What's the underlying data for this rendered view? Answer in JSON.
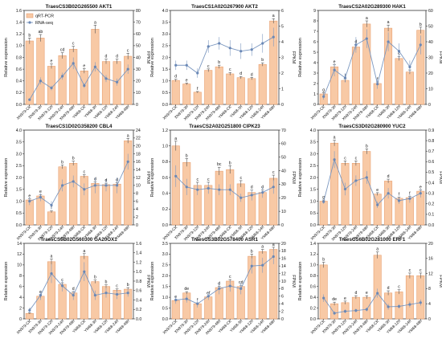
{
  "figure": {
    "legend": {
      "bar_label": "qRT-PCR",
      "line_label": "RNA-seq"
    },
    "colors": {
      "bar_fill": "#f8c9a5",
      "bar_stroke": "#e8a070",
      "line": "#7c98c0",
      "marker": "#6a88b6",
      "axis": "#333333",
      "text": "#111111"
    }
  },
  "chart_data": [
    {
      "type": "bar",
      "title": "TraesCS3B02G265500  AKT1",
      "ylabel": "Relative expression",
      "y2label": "FPKM",
      "ylim": [
        0,
        1.6
      ],
      "y2lim": [
        0,
        80
      ],
      "yticks": [
        "0.0",
        "0.2",
        "0.4",
        "0.6",
        "0.8",
        "1.0",
        "1.2",
        "1.4",
        "1.6"
      ],
      "y2ticks": [
        "0",
        "10",
        "20",
        "30",
        "40",
        "50",
        "60",
        "70",
        "80"
      ],
      "categories": [
        "XN979-CK",
        "XN979-3h",
        "XN979-12h",
        "XN979-24h",
        "XN979-48h",
        "YM68-CK",
        "YM68-3h",
        "YM68-12h",
        "YM68-24h",
        "YM68-48h"
      ],
      "series": [
        {
          "name": "qRT-PCR",
          "values": [
            1.08,
            1.13,
            0.65,
            0.83,
            0.94,
            0.57,
            1.28,
            0.73,
            0.73,
            0.82
          ],
          "errors": [
            0.05,
            0.06,
            0.04,
            0.05,
            0.05,
            0.04,
            0.07,
            0.04,
            0.04,
            0.05
          ],
          "letters": [
            "b",
            "ab",
            "e",
            "cd",
            "c",
            "e",
            "a",
            "d",
            "d",
            "c"
          ]
        },
        {
          "name": "RNA-seq",
          "values": [
            4,
            20,
            14,
            24,
            35,
            16,
            32,
            22,
            19,
            30
          ],
          "errors": [
            1,
            3,
            2,
            3,
            5,
            2,
            4,
            3,
            3,
            4
          ],
          "axis": "right"
        }
      ]
    },
    {
      "type": "bar",
      "title": "TraesCS1A02G267900  AKT2",
      "ylabel": "Relative expression",
      "y2label": "FPKM",
      "ylim": [
        0,
        4.0
      ],
      "y2lim": [
        0,
        6
      ],
      "yticks": [
        "0.0",
        "0.5",
        "1.0",
        "1.5",
        "2.0",
        "2.5",
        "3.0",
        "3.5",
        "4.0"
      ],
      "y2ticks": [
        "0",
        "1",
        "2",
        "3",
        "4",
        "5",
        "6"
      ],
      "categories": [
        "XN979-CK",
        "XN979-3h",
        "XN979-12h",
        "XN979-24h",
        "XN979-48h",
        "YM68-CK",
        "YM68-3h",
        "YM68-12h",
        "YM68-24h",
        "YM68-48h"
      ],
      "series": [
        {
          "name": "qRT-PCR",
          "values": [
            1.02,
            0.87,
            0.52,
            1.45,
            1.6,
            1.3,
            1.14,
            1.1,
            1.7,
            3.55
          ],
          "errors": [
            0.05,
            0.04,
            0.03,
            0.06,
            0.07,
            0.06,
            0.05,
            0.05,
            0.07,
            0.1
          ],
          "letters": [
            "d",
            "e",
            "f",
            "c",
            "b",
            "c",
            "d",
            "d",
            "b",
            "a"
          ]
        },
        {
          "name": "RNA-seq",
          "values": [
            2.5,
            2.5,
            2.0,
            3.7,
            3.9,
            3.6,
            3.4,
            3.5,
            3.9,
            4.3
          ],
          "errors": [
            0.3,
            0.3,
            0.3,
            0.4,
            0.4,
            0.5,
            0.5,
            0.4,
            0.6,
            0.6
          ],
          "axis": "right"
        }
      ]
    },
    {
      "type": "bar",
      "title": "TraesCS2A02G289300  HAK1",
      "ylabel": "Relative expression",
      "y2label": "FPKM",
      "ylim": [
        0,
        9
      ],
      "y2lim": [
        0,
        60
      ],
      "yticks": [
        "0",
        "1",
        "2",
        "3",
        "4",
        "5",
        "6",
        "7",
        "8",
        "9"
      ],
      "y2ticks": [
        "0",
        "10",
        "20",
        "30",
        "40",
        "50",
        "60"
      ],
      "categories": [
        "XN979-CK",
        "XN979-3h",
        "XN979-12h",
        "XN979-24h",
        "XN979-48h",
        "YM68-CK",
        "YM68-3h",
        "YM68-12h",
        "YM68-24h",
        "YM68-48h"
      ],
      "series": [
        {
          "name": "qRT-PCR",
          "values": [
            1.0,
            3.6,
            2.3,
            5.5,
            7.7,
            2.0,
            7.3,
            4.4,
            3.1,
            7.1
          ],
          "errors": [
            0.1,
            0.2,
            0.15,
            0.25,
            0.3,
            0.15,
            0.3,
            0.2,
            0.2,
            0.3
          ],
          "letters": [
            "g",
            "e",
            "f",
            "d",
            "a",
            "f",
            "a",
            "c",
            "e",
            "b"
          ]
        },
        {
          "name": "RNA-seq",
          "values": [
            5,
            22,
            17,
            38,
            42,
            13,
            40,
            34,
            24,
            38
          ],
          "errors": [
            2,
            4,
            3,
            5,
            6,
            3,
            6,
            5,
            4,
            6
          ],
          "axis": "right"
        }
      ]
    },
    {
      "type": "bar",
      "title": "TraesCS1D02G358200  CBL4",
      "ylabel": "Relative expression",
      "y2label": "FPKM",
      "ylim": [
        0,
        4.0
      ],
      "y2lim": [
        0,
        24
      ],
      "yticks": [
        "0.0",
        "0.5",
        "1.0",
        "1.5",
        "2.0",
        "2.5",
        "3.0",
        "3.5",
        "4.0"
      ],
      "y2ticks": [
        "0",
        "2",
        "4",
        "6",
        "8",
        "10",
        "12",
        "14",
        "16",
        "18",
        "20",
        "22",
        "24"
      ],
      "categories": [
        "XN979-CK",
        "XN979-3h",
        "XN979-12h",
        "XN979-24h",
        "XN979-48h",
        "YM68-CK",
        "YM68-3h",
        "YM68-12h",
        "YM68-24h",
        "YM68-48h"
      ],
      "series": [
        {
          "name": "qRT-PCR",
          "values": [
            1.05,
            1.22,
            0.55,
            2.45,
            2.6,
            2.05,
            1.75,
            1.7,
            1.72,
            3.55
          ],
          "errors": [
            0.05,
            0.06,
            0.04,
            0.08,
            0.09,
            0.07,
            0.06,
            0.06,
            0.06,
            0.1
          ],
          "letters": [
            "e",
            "e",
            "f",
            "b",
            "b",
            "c",
            "d",
            "d",
            "d",
            "a"
          ]
        },
        {
          "name": "RNA-seq",
          "values": [
            6,
            7,
            5,
            10,
            11,
            9,
            10,
            10,
            10,
            16
          ],
          "errors": [
            1,
            1,
            1,
            1.5,
            1.5,
            1.5,
            2,
            1.5,
            2,
            2
          ],
          "axis": "right"
        }
      ]
    },
    {
      "type": "bar",
      "title": "TraesCS2A02G251800  CIPK23",
      "ylabel": "Relative expression",
      "y2label": "FPKM",
      "ylim": [
        0,
        1.2
      ],
      "y2lim": [
        0,
        70
      ],
      "yticks": [
        "0.0",
        "0.2",
        "0.4",
        "0.6",
        "0.8",
        "1.0",
        "1.2"
      ],
      "y2ticks": [
        "0",
        "10",
        "20",
        "30",
        "40",
        "50",
        "60",
        "70"
      ],
      "categories": [
        "XN979-CK",
        "XN979-3h",
        "XN979-12h",
        "XN979-24h",
        "XN979-48h",
        "YM68-CK",
        "YM68-3h",
        "YM68-12h",
        "YM68-24h",
        "YM68-48h"
      ],
      "series": [
        {
          "name": "qRT-PCR",
          "values": [
            1.0,
            0.79,
            0.5,
            0.5,
            0.68,
            0.7,
            0.52,
            0.41,
            0.41,
            0.59
          ],
          "errors": [
            0.06,
            0.05,
            0.04,
            0.04,
            0.05,
            0.05,
            0.04,
            0.03,
            0.03,
            0.04
          ],
          "letters": [
            "a",
            "b",
            "c",
            "c",
            "bc",
            "b",
            "c",
            "d",
            "d",
            "c"
          ]
        },
        {
          "name": "RNA-seq",
          "values": [
            36,
            28,
            26,
            27,
            26,
            26,
            20,
            22,
            24,
            28
          ],
          "errors": [
            8,
            6,
            4,
            4,
            4,
            4,
            3,
            4,
            4,
            5
          ],
          "axis": "right"
        }
      ]
    },
    {
      "type": "bar",
      "title": "TraesCS3D02G280900  YUC2",
      "ylabel": "Relative expression",
      "y2label": "FPKM",
      "ylim": [
        0,
        4.0
      ],
      "y2lim": [
        0,
        0.9
      ],
      "yticks": [
        "0.0",
        "0.5",
        "1.0",
        "1.5",
        "2.0",
        "2.5",
        "3.0",
        "3.5",
        "4.0"
      ],
      "y2ticks": [
        "0.0",
        "0.1",
        "0.2",
        "0.3",
        "0.4",
        "0.5",
        "0.6",
        "0.7",
        "0.8",
        "0.9"
      ],
      "categories": [
        "XN979-CK",
        "XN979-3h",
        "XN979-12h",
        "XN979-24h",
        "XN979-48h",
        "YM68-CK",
        "YM68-3h",
        "YM68-12h",
        "YM68-24h",
        "YM68-48h"
      ],
      "series": [
        {
          "name": "qRT-PCR",
          "values": [
            1.0,
            3.45,
            2.6,
            2.6,
            3.1,
            1.3,
            1.85,
            1.12,
            1.15,
            1.42
          ],
          "errors": [
            0.05,
            0.12,
            0.1,
            0.1,
            0.11,
            0.06,
            0.08,
            0.05,
            0.05,
            0.06
          ],
          "letters": [
            "g",
            "a",
            "c",
            "c",
            "b",
            "e",
            "d",
            "f",
            "f",
            "e"
          ]
        },
        {
          "name": "RNA-seq",
          "values": [
            0.22,
            0.62,
            0.34,
            0.42,
            0.45,
            0.19,
            0.3,
            0.23,
            0.25,
            0.3
          ],
          "errors": [
            0.02,
            0.08,
            0.06,
            0.05,
            0.06,
            0.03,
            0.05,
            0.03,
            0.04,
            0.04
          ],
          "axis": "right"
        }
      ]
    },
    {
      "type": "bar",
      "title": "TraesCS5B02G560300  GA20OX1",
      "ylabel": "Relative expression",
      "y2label": "FPKM",
      "ylim": [
        0,
        14
      ],
      "y2lim": [
        0,
        1.6
      ],
      "yticks": [
        "0",
        "2",
        "4",
        "6",
        "8",
        "10",
        "12",
        "14"
      ],
      "y2ticks": [
        "0.0",
        "0.2",
        "0.4",
        "0.6",
        "0.8",
        "1.0",
        "1.2",
        "1.4",
        "1.6"
      ],
      "categories": [
        "XN979-CK",
        "XN979-3h",
        "XN979-12h",
        "XN979-24h",
        "XN979-48h",
        "YM68-CK",
        "YM68-3h",
        "YM68-12h",
        "YM68-24h",
        "YM68-48h"
      ],
      "series": [
        {
          "name": "qRT-PCR",
          "values": [
            1.0,
            4.2,
            10.6,
            6.4,
            4.8,
            11.6,
            6.9,
            6.0,
            5.3,
            5.5
          ],
          "errors": [
            0.1,
            0.3,
            0.5,
            0.3,
            0.25,
            0.5,
            0.3,
            0.3,
            0.25,
            0.3
          ],
          "letters": [
            "f",
            "e",
            "a",
            "c",
            "d",
            "a",
            "b",
            "b",
            "c",
            "b"
          ]
        },
        {
          "name": "RNA-seq",
          "values": [
            0.18,
            0.5,
            0.96,
            0.7,
            0.5,
            1.0,
            0.5,
            0.55,
            0.52,
            0.55
          ],
          "errors": [
            0.05,
            0.1,
            0.2,
            0.12,
            0.1,
            0.2,
            0.1,
            0.1,
            0.1,
            0.08
          ],
          "axis": "right"
        }
      ]
    },
    {
      "type": "bar",
      "title": "TraesCS3B02G578400  ASR1",
      "ylabel": "Relative expression",
      "y2label": "FPKM",
      "ylim": [
        0,
        3.5
      ],
      "y2lim": [
        0,
        20
      ],
      "yticks": [
        "0.0",
        "0.5",
        "1.0",
        "1.5",
        "2.0",
        "2.5",
        "3.0",
        "3.5"
      ],
      "y2ticks": [
        "0",
        "2",
        "4",
        "6",
        "8",
        "10",
        "12",
        "14",
        "16",
        "18",
        "20"
      ],
      "categories": [
        "XN979-CK",
        "XN979-3h",
        "XN979-12h",
        "XN979-24h",
        "XN979-48h",
        "YM68-CK",
        "YM68-3h",
        "YM68-12h",
        "YM68-24h",
        "YM68-48h"
      ],
      "series": [
        {
          "name": "qRT-PCR",
          "values": [
            0.85,
            1.2,
            0.7,
            1.02,
            1.45,
            1.75,
            1.5,
            2.9,
            3.12,
            3.22
          ],
          "errors": [
            0.05,
            0.06,
            0.04,
            0.05,
            0.06,
            0.07,
            0.06,
            0.1,
            0.1,
            0.1
          ],
          "letters": [
            "e",
            "de",
            "f",
            "ef",
            "d",
            "c",
            "cd",
            "b",
            "a",
            "a"
          ]
        },
        {
          "name": "RNA-seq",
          "values": [
            5,
            5.3,
            4,
            6,
            8,
            8.7,
            8,
            14,
            14.2,
            16.5
          ],
          "errors": [
            1,
            1,
            1,
            1,
            1.5,
            1.5,
            1.5,
            2,
            2,
            2
          ],
          "axis": "right"
        }
      ]
    },
    {
      "type": "bar",
      "title": "TraesCS6B02G281000  ERF1",
      "ylabel": "Relative expression",
      "y2label": "FPKM",
      "ylim": [
        0,
        1.4
      ],
      "y2lim": [
        0,
        20
      ],
      "yticks": [
        "0.0",
        "0.2",
        "0.4",
        "0.6",
        "0.8",
        "1.0",
        "1.2",
        "1.4"
      ],
      "y2ticks": [
        "0",
        "4",
        "8",
        "12",
        "16",
        "20"
      ],
      "categories": [
        "XN979-CK",
        "XN979-3h",
        "XN979-12h",
        "XN979-24h",
        "XN979-48h",
        "YM68-CK",
        "YM68-3h",
        "YM68-12h",
        "YM68-24h",
        "YM68-48h"
      ],
      "series": [
        {
          "name": "qRT-PCR",
          "values": [
            1.0,
            0.28,
            0.3,
            0.4,
            0.4,
            1.18,
            0.48,
            0.5,
            0.8,
            0.8
          ],
          "errors": [
            0.05,
            0.03,
            0.03,
            0.03,
            0.03,
            0.06,
            0.04,
            0.04,
            0.05,
            0.05
          ],
          "letters": [
            "b",
            "de",
            "e",
            "d",
            "e",
            "a",
            "d",
            "c",
            "c",
            "c"
          ]
        },
        {
          "name": "RNA-seq",
          "values": [
            5.5,
            1.5,
            2,
            2.2,
            2.5,
            6.8,
            3.2,
            3.3,
            3.8,
            4.3
          ],
          "errors": [
            1,
            0.5,
            0.5,
            0.5,
            0.5,
            1.2,
            0.8,
            0.6,
            0.8,
            0.8
          ],
          "axis": "right"
        }
      ]
    }
  ]
}
